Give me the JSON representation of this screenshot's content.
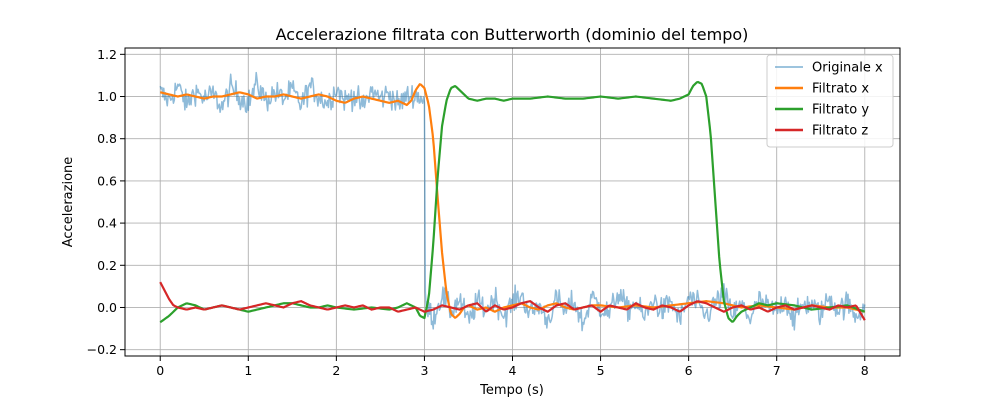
{
  "chart_data": {
    "type": "line",
    "title": "Accelerazione filtrata con Butterworth (dominio del tempo)",
    "xlabel": "Tempo (s)",
    "ylabel": "Accelerazione",
    "xlim": [
      -0.4,
      8.4
    ],
    "ylim": [
      -0.23,
      1.23
    ],
    "xticks": [
      0,
      1,
      2,
      3,
      4,
      5,
      6,
      7,
      8
    ],
    "xtick_labels": [
      "0",
      "1",
      "2",
      "3",
      "4",
      "5",
      "6",
      "7",
      "8"
    ],
    "yticks": [
      -0.2,
      0.0,
      0.2,
      0.4,
      0.6,
      0.8,
      1.0,
      1.2
    ],
    "ytick_labels": [
      "−0.2",
      "0.0",
      "0.2",
      "0.4",
      "0.6",
      "0.8",
      "1.0",
      "1.2"
    ],
    "grid": true,
    "legend_position": "top-right",
    "series": [
      {
        "name": "Originale x",
        "color": "#1f77b4",
        "opacity": 0.5,
        "noisy": true,
        "x": [
          0.0,
          0.1,
          0.2,
          0.3,
          0.4,
          0.5,
          0.6,
          0.7,
          0.8,
          0.9,
          1.0,
          1.1,
          1.2,
          1.3,
          1.4,
          1.5,
          1.6,
          1.7,
          1.8,
          1.9,
          2.0,
          2.1,
          2.2,
          2.3,
          2.4,
          2.5,
          2.6,
          2.7,
          2.8,
          2.9,
          3.0,
          3.01,
          3.1,
          3.2,
          3.3,
          3.4,
          3.5,
          3.6,
          3.7,
          3.8,
          3.9,
          4.0,
          4.1,
          4.2,
          4.3,
          4.4,
          4.5,
          4.6,
          4.7,
          4.8,
          4.9,
          5.0,
          5.1,
          5.2,
          5.3,
          5.4,
          5.5,
          5.6,
          5.7,
          5.8,
          5.9,
          6.0,
          6.1,
          6.2,
          6.3,
          6.4,
          6.5,
          6.6,
          6.7,
          6.8,
          6.9,
          7.0,
          7.1,
          7.2,
          7.3,
          7.4,
          7.5,
          7.6,
          7.7,
          7.8,
          7.9,
          8.0
        ],
        "y": [
          1.02,
          0.98,
          1.05,
          0.96,
          1.03,
          0.99,
          1.01,
          0.95,
          1.04,
          1.0,
          0.97,
          1.06,
          0.98,
          1.02,
          0.99,
          1.03,
          0.96,
          1.05,
          1.0,
          0.97,
          1.04,
          0.98,
          1.01,
          0.95,
          1.03,
          0.99,
          1.02,
          0.96,
          1.0,
          1.01,
          0.98,
          0.02,
          -0.05,
          0.06,
          -0.02,
          0.04,
          -0.07,
          0.03,
          -0.01,
          0.05,
          -0.04,
          0.02,
          0.06,
          -0.03,
          0.01,
          -0.06,
          0.04,
          -0.02,
          0.03,
          -0.08,
          0.05,
          0.0,
          -0.03,
          0.07,
          -0.01,
          0.02,
          -0.05,
          0.04,
          -0.02,
          0.03,
          -0.06,
          0.05,
          0.01,
          -0.04,
          0.02,
          0.06,
          -0.03,
          0.01,
          -0.05,
          0.03,
          0.0,
          -0.02,
          0.04,
          -0.06,
          0.02,
          0.01,
          -0.03,
          0.05,
          -0.01,
          0.02,
          -0.04,
          0.01
        ]
      },
      {
        "name": "Filtrato x",
        "color": "#ff7f0e",
        "x": [
          0.0,
          0.1,
          0.2,
          0.3,
          0.4,
          0.5,
          0.6,
          0.7,
          0.8,
          0.9,
          1.0,
          1.1,
          1.2,
          1.3,
          1.4,
          1.5,
          1.6,
          1.7,
          1.8,
          1.9,
          2.0,
          2.1,
          2.2,
          2.3,
          2.4,
          2.5,
          2.6,
          2.7,
          2.8,
          2.85,
          2.9,
          2.95,
          3.0,
          3.05,
          3.1,
          3.15,
          3.2,
          3.25,
          3.3,
          3.35,
          3.4,
          3.45,
          3.5,
          3.6,
          3.7,
          3.8,
          3.9,
          4.0,
          4.1,
          4.2,
          4.3,
          4.4,
          4.5,
          4.6,
          4.7,
          4.8,
          4.9,
          5.0,
          5.2,
          5.4,
          5.6,
          5.8,
          6.0,
          6.2,
          6.4,
          6.6,
          6.8,
          7.0,
          7.2,
          7.4,
          7.6,
          7.8,
          8.0
        ],
        "y": [
          1.02,
          1.01,
          1.0,
          1.01,
          1.0,
          0.99,
          1.0,
          1.0,
          1.01,
          1.02,
          1.01,
          0.99,
          1.0,
          1.0,
          1.01,
          1.0,
          0.99,
          1.0,
          1.01,
          1.0,
          0.98,
          0.97,
          0.99,
          1.0,
          0.99,
          0.98,
          0.97,
          0.98,
          0.96,
          0.98,
          1.03,
          1.06,
          1.04,
          0.96,
          0.8,
          0.52,
          0.26,
          0.07,
          -0.03,
          -0.05,
          -0.03,
          0.0,
          0.01,
          -0.01,
          0.0,
          -0.02,
          0.0,
          0.01,
          0.02,
          0.0,
          -0.01,
          0.01,
          0.02,
          0.0,
          -0.01,
          0.0,
          0.01,
          0.01,
          0.0,
          0.01,
          0.0,
          0.01,
          0.02,
          0.03,
          0.02,
          0.0,
          0.01,
          0.0,
          -0.01,
          0.01,
          0.0,
          0.0,
          -0.02
        ]
      },
      {
        "name": "Filtrato y",
        "color": "#2ca02c",
        "x": [
          0.0,
          0.1,
          0.2,
          0.3,
          0.4,
          0.5,
          0.6,
          0.7,
          0.8,
          0.9,
          1.0,
          1.1,
          1.2,
          1.3,
          1.4,
          1.5,
          1.6,
          1.7,
          1.8,
          1.9,
          2.0,
          2.2,
          2.4,
          2.6,
          2.7,
          2.8,
          2.9,
          2.95,
          3.0,
          3.05,
          3.1,
          3.15,
          3.2,
          3.25,
          3.3,
          3.35,
          3.4,
          3.5,
          3.6,
          3.7,
          3.8,
          3.9,
          4.0,
          4.2,
          4.4,
          4.6,
          4.8,
          5.0,
          5.2,
          5.4,
          5.6,
          5.8,
          5.9,
          6.0,
          6.05,
          6.1,
          6.15,
          6.2,
          6.25,
          6.3,
          6.35,
          6.4,
          6.45,
          6.5,
          6.55,
          6.6,
          6.7,
          6.8,
          6.9,
          7.0,
          7.2,
          7.4,
          7.6,
          7.8,
          8.0
        ],
        "y": [
          -0.07,
          -0.04,
          0.0,
          0.02,
          0.01,
          -0.01,
          0.0,
          0.01,
          0.0,
          -0.01,
          -0.02,
          -0.01,
          0.0,
          0.01,
          0.02,
          0.02,
          0.01,
          0.0,
          0.0,
          0.01,
          0.0,
          -0.01,
          0.0,
          -0.01,
          0.0,
          0.02,
          0.0,
          -0.04,
          -0.05,
          0.05,
          0.3,
          0.62,
          0.86,
          0.98,
          1.04,
          1.05,
          1.03,
          0.99,
          0.98,
          0.99,
          0.99,
          0.98,
          0.99,
          0.99,
          1.0,
          0.99,
          0.99,
          1.0,
          0.99,
          1.0,
          0.99,
          0.98,
          0.99,
          1.01,
          1.05,
          1.07,
          1.06,
          1.0,
          0.82,
          0.52,
          0.22,
          0.03,
          -0.05,
          -0.07,
          -0.04,
          -0.02,
          0.0,
          0.02,
          0.01,
          0.02,
          0.01,
          -0.01,
          0.0,
          0.01,
          -0.02
        ]
      },
      {
        "name": "Filtrato z",
        "color": "#d62728",
        "x": [
          0.0,
          0.05,
          0.1,
          0.15,
          0.2,
          0.3,
          0.4,
          0.5,
          0.6,
          0.7,
          0.8,
          0.9,
          1.0,
          1.1,
          1.2,
          1.3,
          1.4,
          1.5,
          1.6,
          1.7,
          1.8,
          1.9,
          2.0,
          2.1,
          2.2,
          2.3,
          2.4,
          2.5,
          2.6,
          2.7,
          2.8,
          2.9,
          3.0,
          3.1,
          3.2,
          3.3,
          3.4,
          3.5,
          3.6,
          3.7,
          3.8,
          3.9,
          4.0,
          4.1,
          4.2,
          4.3,
          4.4,
          4.5,
          4.6,
          4.7,
          4.8,
          4.9,
          5.0,
          5.1,
          5.2,
          5.3,
          5.4,
          5.5,
          5.6,
          5.7,
          5.8,
          5.9,
          6.0,
          6.1,
          6.2,
          6.3,
          6.4,
          6.5,
          6.6,
          6.7,
          6.8,
          6.9,
          7.0,
          7.1,
          7.2,
          7.3,
          7.4,
          7.5,
          7.6,
          7.7,
          7.8,
          7.9,
          8.0
        ],
        "y": [
          0.12,
          0.08,
          0.04,
          0.01,
          0.0,
          -0.01,
          0.0,
          -0.01,
          0.0,
          0.01,
          0.0,
          -0.01,
          0.0,
          0.01,
          0.02,
          0.01,
          0.0,
          0.02,
          0.03,
          0.01,
          0.0,
          -0.01,
          0.0,
          0.01,
          0.0,
          0.01,
          -0.01,
          0.0,
          0.0,
          -0.02,
          -0.01,
          0.0,
          -0.02,
          -0.01,
          0.01,
          0.0,
          -0.01,
          0.01,
          0.02,
          -0.02,
          0.01,
          -0.01,
          0.0,
          0.02,
          0.03,
          0.0,
          -0.02,
          0.01,
          0.02,
          -0.01,
          0.0,
          0.01,
          -0.02,
          0.01,
          0.0,
          -0.01,
          0.02,
          0.0,
          -0.01,
          0.01,
          0.0,
          -0.02,
          0.01,
          0.03,
          0.02,
          0.0,
          -0.02,
          0.0,
          0.01,
          -0.01,
          0.0,
          -0.02,
          0.0,
          0.01,
          -0.01,
          0.0,
          0.01,
          0.0,
          -0.01,
          0.01,
          0.0,
          0.01,
          -0.06
        ]
      }
    ]
  }
}
